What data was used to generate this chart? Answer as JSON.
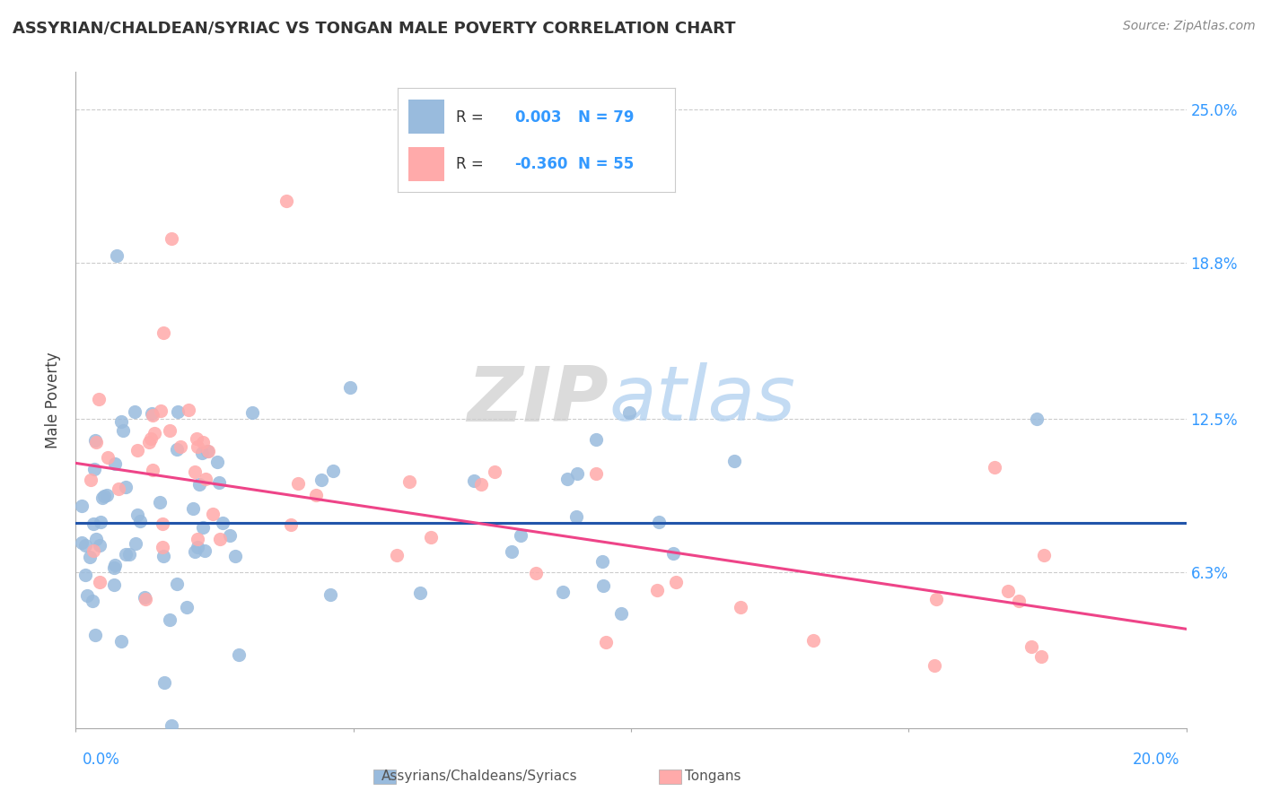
{
  "title": "ASSYRIAN/CHALDEAN/SYRIAC VS TONGAN MALE POVERTY CORRELATION CHART",
  "source": "Source: ZipAtlas.com",
  "ylabel": "Male Poverty",
  "xlim": [
    0.0,
    0.2
  ],
  "ylim": [
    0.0,
    0.265
  ],
  "ytick_labels": [
    "6.3%",
    "12.5%",
    "18.8%",
    "25.0%"
  ],
  "ytick_values": [
    0.063,
    0.125,
    0.188,
    0.25
  ],
  "color_blue": "#99BBDD",
  "color_pink": "#FFAAAA",
  "color_blue_line": "#2255AA",
  "color_pink_line": "#EE4488",
  "background_color": "#FFFFFF",
  "grid_color": "#CCCCCC",
  "blue_line_y": 0.083,
  "pink_line_y_start": 0.107,
  "pink_line_y_end": 0.04,
  "legend_R1": "0.003",
  "legend_N1": "79",
  "legend_R2": "-0.360",
  "legend_N2": "55"
}
